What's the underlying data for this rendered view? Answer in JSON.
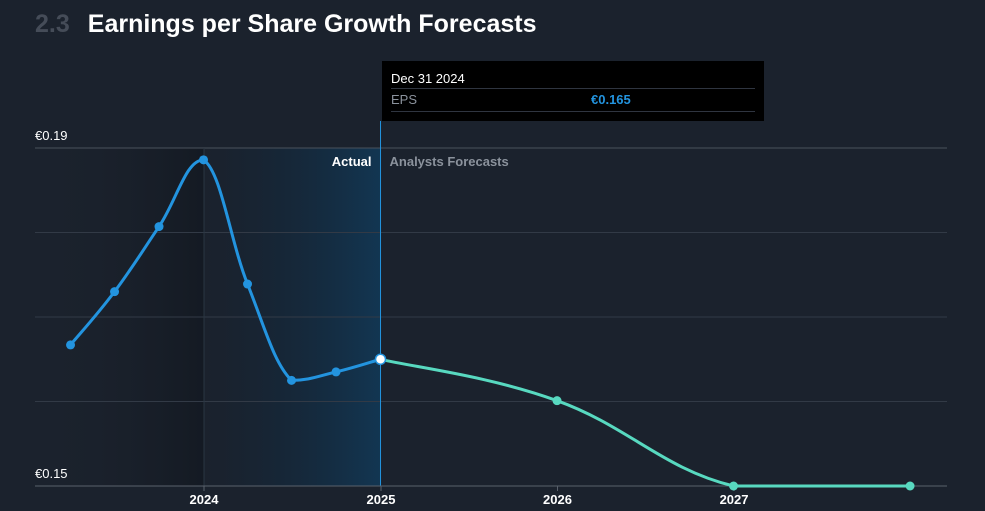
{
  "header": {
    "section_number": "2.3",
    "title": "Earnings per Share Growth Forecasts"
  },
  "tooltip": {
    "date": "Dec 31 2024",
    "label": "EPS",
    "value": "€0.165"
  },
  "colors": {
    "actual": "#2394df",
    "forecast": "#58d9c0",
    "background": "#1b222d"
  },
  "chart_data": {
    "type": "line",
    "title": "Earnings per Share Growth Forecasts",
    "y_tick_labels": [
      "€0.19",
      "€0.15"
    ],
    "ylim": [
      0.15,
      0.19
    ],
    "x_tick_labels": [
      "2024",
      "2025",
      "2026",
      "2027"
    ],
    "region_labels": {
      "actual": "Actual",
      "forecast": "Analysts Forecasts"
    },
    "grid": true,
    "series": [
      {
        "key": "actual",
        "values": [
          {
            "x": "2023-03-31",
            "y": 0.1667
          },
          {
            "x": "2023-06-30",
            "y": 0.173
          },
          {
            "x": "2023-09-30",
            "y": 0.1807
          },
          {
            "x": "2023-12-31",
            "y": 0.1886
          },
          {
            "x": "2024-03-31",
            "y": 0.1739
          },
          {
            "x": "2024-06-30",
            "y": 0.1625
          },
          {
            "x": "2024-09-30",
            "y": 0.1635
          },
          {
            "x": "2024-12-31",
            "y": 0.165
          }
        ]
      },
      {
        "key": "forecast",
        "values": [
          {
            "x": "2024-12-31",
            "y": 0.165
          },
          {
            "x": "2025-12-31",
            "y": 0.1601
          },
          {
            "x": "2026-12-31",
            "y": 0.15
          },
          {
            "x": "2027-12-31",
            "y": 0.15
          }
        ]
      }
    ],
    "highlight": {
      "x": "2024-12-31",
      "y": 0.165
    }
  }
}
